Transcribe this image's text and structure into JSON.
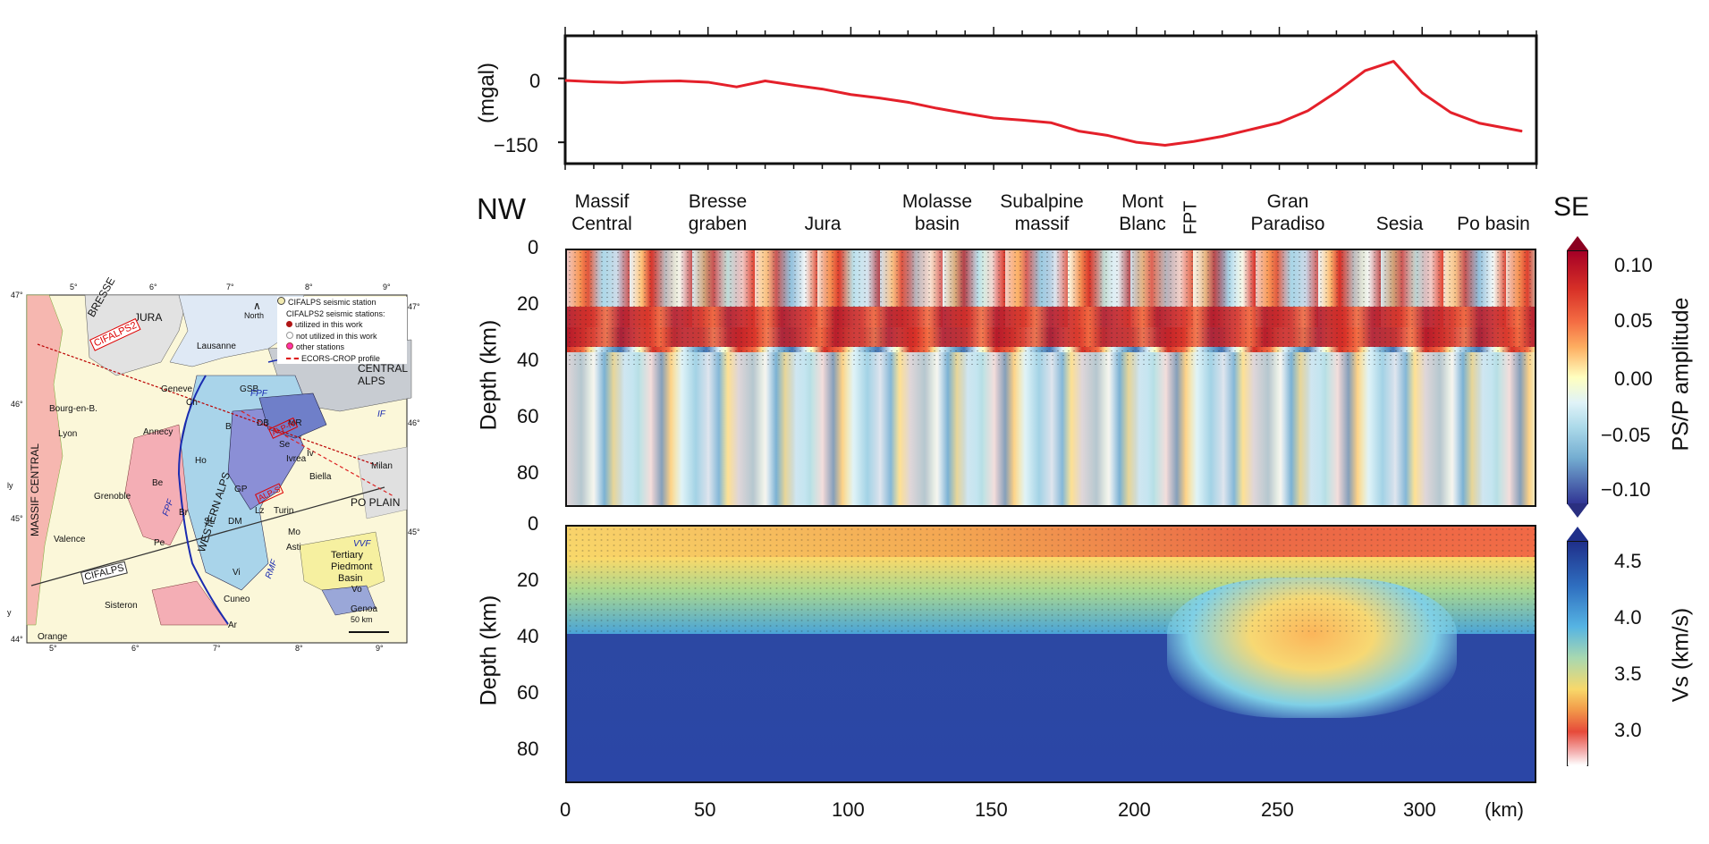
{
  "map": {
    "lon_ticks_top": [
      "5°",
      "6°",
      "7°",
      "8°",
      "9°"
    ],
    "lon_ticks_bottom": [
      "5°",
      "6°",
      "7°",
      "8°",
      "9°"
    ],
    "lat_left": [
      "47°",
      "46°",
      "45°",
      "44°"
    ],
    "lat_right": [
      "47°",
      "46°",
      "45°"
    ],
    "left_edge_marks": [
      "ly",
      "y"
    ],
    "north_label": "North",
    "legend": {
      "l1": "CIFALPS seismic station",
      "l2": "CIFALPS2 seismic stations:",
      "l3": "utilized in this work",
      "l4": "not utilized in this work",
      "l5": "other stations",
      "l6": "ECORS-CROP profile"
    },
    "profile_labels": [
      "CIFALPS2",
      "CIFALPS",
      "ALP-N",
      "ALP-S"
    ],
    "fault_labels": [
      "FPF",
      "FPF",
      "RMF",
      "IF",
      "VVF"
    ],
    "regions": [
      "BRESSE",
      "JURA",
      "MASSIF CENTRAL",
      "CENTRAL ALPS",
      "WESTERN ALPS",
      "PO PLAIN",
      "Tertiary",
      "Piedmont",
      "Basin"
    ],
    "cities": [
      "Lausanne",
      "Geneve",
      "Bourg-en-B.",
      "Lyon",
      "Annecy",
      "Grenoble",
      "Valence",
      "Orange",
      "Sisteron",
      "Cuneo",
      "Genoa",
      "Turin",
      "Asti",
      "Ivrea",
      "Biella",
      "Milan"
    ],
    "units": [
      "Ch",
      "GSB",
      "DB",
      "MR",
      "Se",
      "B",
      "Ho",
      "Be",
      "Br",
      "SL",
      "DM",
      "GP",
      "Pe",
      "Ar",
      "Mo",
      "Lz",
      "Vi",
      "Vo",
      "Iv"
    ],
    "scale_label": "50 km"
  },
  "gravity": {
    "ylabel": "(mgal)",
    "yticks": [
      "0",
      "−150"
    ]
  },
  "sections": {
    "left_label": "NW",
    "right_label": "SE",
    "regions": [
      {
        "line1": "Massif",
        "line2": "Central"
      },
      {
        "line1": "Bresse",
        "line2": "graben"
      },
      {
        "line1": "",
        "line2": "Jura"
      },
      {
        "line1": "Molasse",
        "line2": "basin"
      },
      {
        "line1": "Subalpine",
        "line2": "massif"
      },
      {
        "line1": "Mont",
        "line2": "Blanc"
      },
      {
        "line1": "Gran",
        "line2": "Paradiso"
      },
      {
        "line1": "",
        "line2": "Sesia"
      },
      {
        "line1": "",
        "line2": "Po basin"
      }
    ],
    "fpt_label": "FPT",
    "depth_label": "Depth (km)",
    "depth_ticks": [
      "0",
      "20",
      "40",
      "60",
      "80"
    ],
    "x_ticks": [
      "0",
      "50",
      "100",
      "150",
      "200",
      "250",
      "300"
    ],
    "x_unit": "(km)"
  },
  "colorbar_rf": {
    "label": "PS/P amplitude",
    "ticks": [
      "0.10",
      "0.05",
      "0.00",
      "−0.05",
      "−0.10"
    ]
  },
  "colorbar_vs": {
    "label": "Vs (km/s)",
    "ticks": [
      "4.5",
      "4.0",
      "3.5",
      "3.0"
    ]
  },
  "chart_data": {
    "type": "line",
    "x": [
      0,
      10,
      20,
      30,
      40,
      50,
      60,
      70,
      80,
      90,
      100,
      110,
      120,
      130,
      140,
      150,
      160,
      170,
      180,
      190,
      200,
      210,
      220,
      230,
      240,
      250,
      260,
      270,
      280,
      290,
      300,
      310,
      320,
      335
    ],
    "y": [
      -5,
      -8,
      -10,
      -7,
      -6,
      -9,
      -20,
      -6,
      -16,
      -25,
      -38,
      -46,
      -56,
      -70,
      -82,
      -93,
      -98,
      -104,
      -124,
      -134,
      -150,
      -157,
      -148,
      -136,
      -120,
      -104,
      -76,
      -32,
      18,
      40,
      -34,
      -80,
      -105,
      -124
    ],
    "xlim": [
      0,
      340
    ],
    "ylim": [
      -200,
      100
    ],
    "ylabel": "(mgal)",
    "color": "#e4202a"
  }
}
